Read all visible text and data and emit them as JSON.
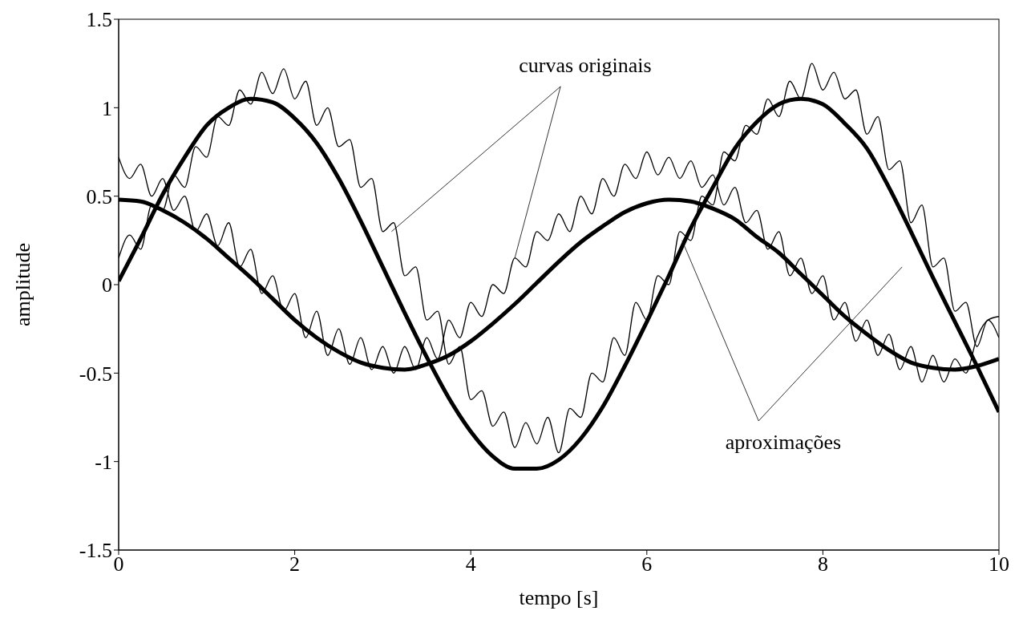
{
  "chart_data": {
    "type": "line",
    "xlabel": "tempo [s]",
    "ylabel": "amplitude",
    "xlim": [
      0,
      10
    ],
    "xticks": [
      0,
      2,
      4,
      6,
      8,
      10
    ],
    "ylim": [
      -1.5,
      1.5
    ],
    "yticks": [
      -1.5,
      -1,
      -0.5,
      0,
      0.5,
      1,
      1.5
    ],
    "grid": false,
    "legend": false,
    "marker": "none",
    "line_style": "solid",
    "annotations": [
      {
        "text": "curvas originais",
        "x": 3.1,
        "y": 0.3
      },
      {
        "text": "aproximações",
        "x": 6.4,
        "y": 0.25
      }
    ],
    "series": [
      {
        "color": "#000000",
        "x": [
          0,
          0.125,
          0.25,
          0.375,
          0.5,
          0.625,
          0.75,
          0.875,
          1,
          1.125,
          1.25,
          1.375,
          1.5,
          1.625,
          1.75,
          1.875,
          2,
          2.125,
          2.25,
          2.375,
          2.5,
          2.625,
          2.75,
          2.875,
          3,
          3.125,
          3.25,
          3.375,
          3.5,
          3.625,
          3.75,
          3.875,
          4,
          4.125,
          4.25,
          4.375,
          4.5,
          4.625,
          4.75,
          4.875,
          5,
          5.125,
          5.25,
          5.375,
          5.5,
          5.625,
          5.75,
          5.875,
          6,
          6.125,
          6.25,
          6.375,
          6.5,
          6.625,
          6.75,
          6.875,
          7,
          7.125,
          7.25,
          7.375,
          7.5,
          7.625,
          7.75,
          7.875,
          8,
          8.125,
          8.25,
          8.375,
          8.5,
          8.625,
          8.75,
          8.875,
          9,
          9.125,
          9.25,
          9.375,
          9.5,
          9.625,
          9.75,
          9.875,
          10
        ],
        "values": [
          0.15,
          0.28,
          0.2,
          0.45,
          0.42,
          0.62,
          0.55,
          0.78,
          0.72,
          0.95,
          0.9,
          1.1,
          1.02,
          1.2,
          1.08,
          1.22,
          1.05,
          1.15,
          0.9,
          1.0,
          0.78,
          0.82,
          0.55,
          0.6,
          0.3,
          0.35,
          0.05,
          0.1,
          -0.2,
          -0.15,
          -0.45,
          -0.35,
          -0.65,
          -0.6,
          -0.8,
          -0.72,
          -0.92,
          -0.78,
          -0.9,
          -0.75,
          -0.95,
          -0.7,
          -0.75,
          -0.5,
          -0.55,
          -0.3,
          -0.4,
          -0.1,
          -0.2,
          0.05,
          0.0,
          0.3,
          0.25,
          0.5,
          0.45,
          0.75,
          0.7,
          0.9,
          0.85,
          1.05,
          0.95,
          1.15,
          1.05,
          1.25,
          1.1,
          1.2,
          1.05,
          1.1,
          0.85,
          0.95,
          0.65,
          0.7,
          0.35,
          0.45,
          0.1,
          0.15,
          -0.15,
          -0.1,
          -0.35,
          -0.2,
          -0.3
        ]
      },
      {
        "color": "#000000",
        "x": [
          0,
          0.125,
          0.25,
          0.375,
          0.5,
          0.625,
          0.75,
          0.875,
          1,
          1.125,
          1.25,
          1.375,
          1.5,
          1.625,
          1.75,
          1.875,
          2,
          2.125,
          2.25,
          2.375,
          2.5,
          2.625,
          2.75,
          2.875,
          3,
          3.125,
          3.25,
          3.375,
          3.5,
          3.625,
          3.75,
          3.875,
          4,
          4.125,
          4.25,
          4.375,
          4.5,
          4.625,
          4.75,
          4.875,
          5,
          5.125,
          5.25,
          5.375,
          5.5,
          5.625,
          5.75,
          5.875,
          6,
          6.125,
          6.25,
          6.375,
          6.5,
          6.625,
          6.75,
          6.875,
          7,
          7.125,
          7.25,
          7.375,
          7.5,
          7.625,
          7.75,
          7.875,
          8,
          8.125,
          8.25,
          8.375,
          8.5,
          8.625,
          8.75,
          8.875,
          9,
          9.125,
          9.25,
          9.375,
          9.5,
          9.625,
          9.75,
          9.875,
          10
        ],
        "values": [
          0.72,
          0.6,
          0.68,
          0.5,
          0.6,
          0.42,
          0.5,
          0.3,
          0.4,
          0.22,
          0.35,
          0.1,
          0.2,
          -0.05,
          0.05,
          -0.15,
          -0.05,
          -0.3,
          -0.15,
          -0.4,
          -0.25,
          -0.45,
          -0.3,
          -0.48,
          -0.35,
          -0.5,
          -0.35,
          -0.48,
          -0.3,
          -0.42,
          -0.2,
          -0.3,
          -0.1,
          -0.18,
          0.0,
          -0.05,
          0.15,
          0.1,
          0.3,
          0.25,
          0.4,
          0.3,
          0.5,
          0.4,
          0.6,
          0.5,
          0.68,
          0.6,
          0.75,
          0.62,
          0.72,
          0.6,
          0.7,
          0.55,
          0.62,
          0.45,
          0.55,
          0.35,
          0.42,
          0.2,
          0.3,
          0.05,
          0.15,
          -0.05,
          0.05,
          -0.2,
          -0.1,
          -0.32,
          -0.2,
          -0.4,
          -0.28,
          -0.48,
          -0.35,
          -0.55,
          -0.4,
          -0.55,
          -0.42,
          -0.5,
          -0.3,
          -0.2,
          -0.18
        ]
      },
      {
        "color": "#000000",
        "x": [
          0,
          0.25,
          0.5,
          0.75,
          1,
          1.25,
          1.5,
          1.75,
          2,
          2.25,
          2.5,
          2.75,
          3,
          3.25,
          3.5,
          3.75,
          4,
          4.25,
          4.5,
          4.75,
          5,
          5.25,
          5.5,
          5.75,
          6,
          6.25,
          6.5,
          6.75,
          7,
          7.25,
          7.5,
          7.75,
          8,
          8.25,
          8.5,
          8.75,
          9,
          9.25,
          9.5,
          9.75,
          10
        ],
        "values": [
          0.02,
          0.26,
          0.51,
          0.72,
          0.9,
          1.0,
          1.05,
          1.03,
          0.94,
          0.8,
          0.6,
          0.36,
          0.1,
          -0.16,
          -0.41,
          -0.64,
          -0.83,
          -0.97,
          -1.04,
          -1.04,
          -0.99,
          -0.87,
          -0.69,
          -0.46,
          -0.21,
          0.05,
          0.32,
          0.55,
          0.77,
          0.92,
          1.02,
          1.05,
          1.02,
          0.91,
          0.77,
          0.55,
          0.3,
          0.04,
          -0.21,
          -0.46,
          -0.72
        ]
      },
      {
        "color": "#000000",
        "x": [
          0,
          0.25,
          0.5,
          0.75,
          1,
          1.25,
          1.5,
          1.75,
          2,
          2.25,
          2.5,
          2.75,
          3,
          3.25,
          3.5,
          3.75,
          4,
          4.25,
          4.5,
          4.75,
          5,
          5.25,
          5.5,
          5.75,
          6,
          6.25,
          6.5,
          6.75,
          7,
          7.25,
          7.5,
          7.75,
          8,
          8.25,
          8.5,
          8.75,
          9,
          9.25,
          9.5,
          9.75,
          10
        ],
        "values": [
          0.48,
          0.47,
          0.42,
          0.35,
          0.26,
          0.15,
          0.04,
          -0.08,
          -0.2,
          -0.3,
          -0.38,
          -0.44,
          -0.47,
          -0.48,
          -0.45,
          -0.4,
          -0.32,
          -0.22,
          -0.11,
          0.01,
          0.13,
          0.24,
          0.33,
          0.41,
          0.46,
          0.48,
          0.47,
          0.43,
          0.37,
          0.27,
          0.18,
          0.06,
          -0.06,
          -0.18,
          -0.28,
          -0.37,
          -0.44,
          -0.47,
          -0.48,
          -0.46,
          -0.42
        ]
      }
    ]
  }
}
